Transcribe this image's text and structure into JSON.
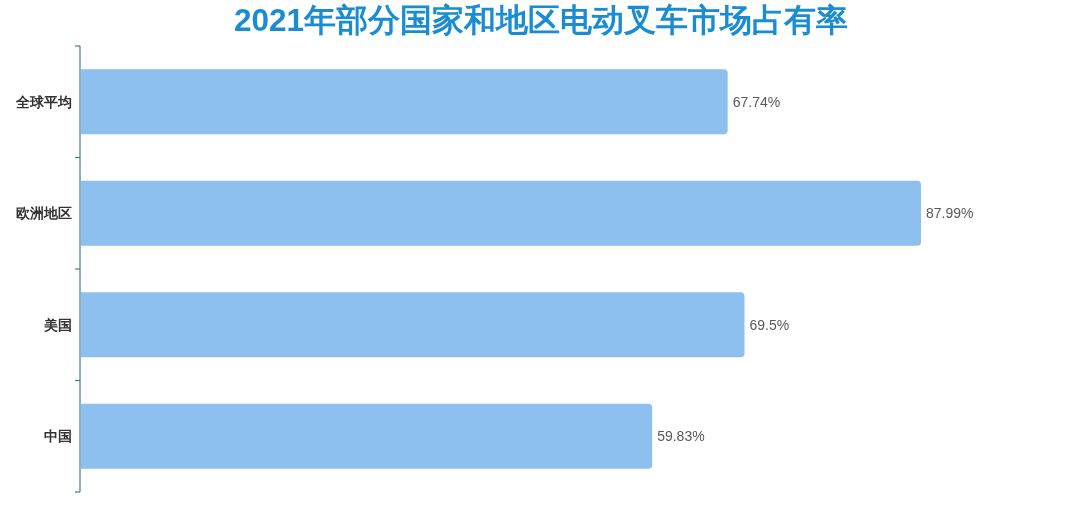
{
  "chart_data": {
    "type": "bar",
    "title": "2021年部分国家和地区电动叉车市场占有率",
    "categories": [
      "全球平均",
      "欧洲地区",
      "美国",
      "中国"
    ],
    "values": [
      67.74,
      87.99,
      69.5,
      59.83
    ],
    "value_labels": [
      "67.74%",
      "87.99%",
      "69.5%",
      "59.83%"
    ],
    "color": "#8dc0ef",
    "orientation": "horizontal",
    "tick_labels": "y"
  }
}
